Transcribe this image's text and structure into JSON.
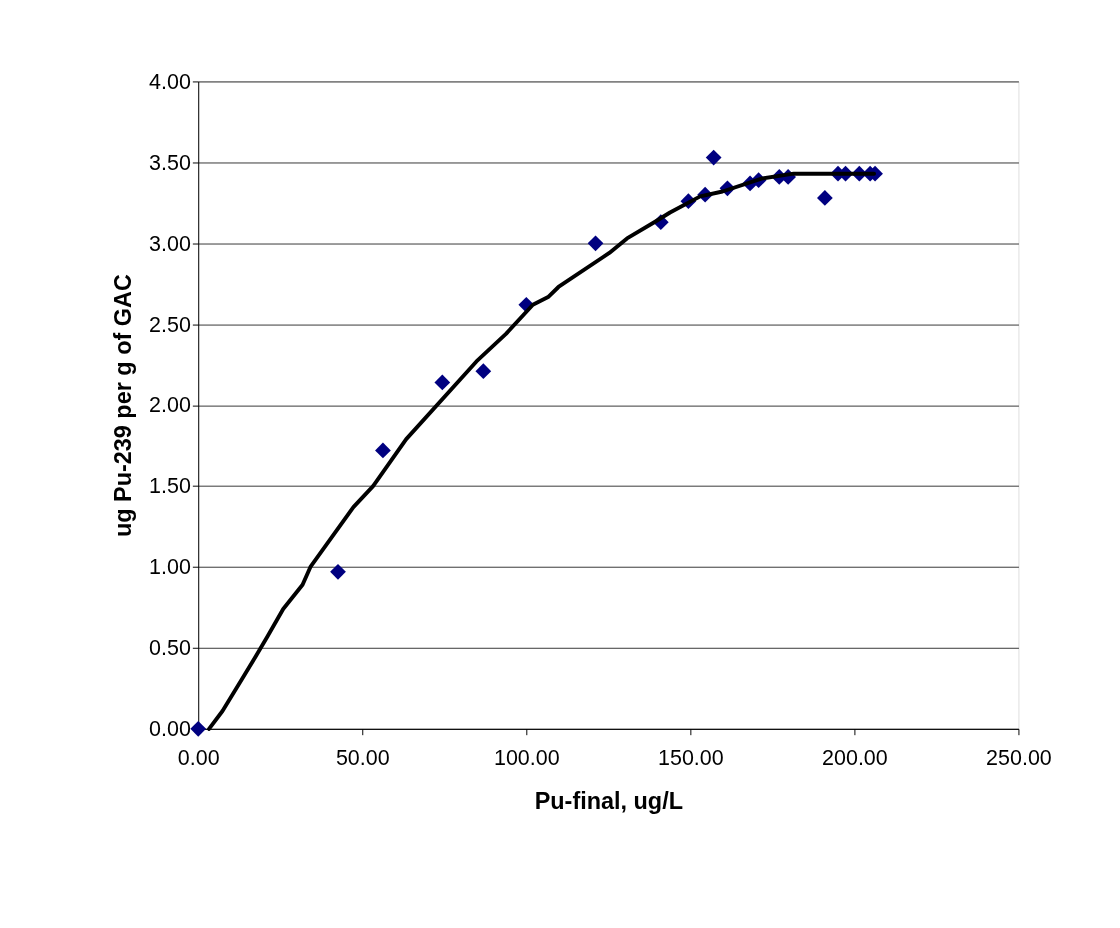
{
  "chart_data": {
    "type": "scatter",
    "xlabel": "Pu-final, ug/L",
    "ylabel": "ug Pu-239 per g of  GAC",
    "xlim": [
      0,
      250
    ],
    "xticks": [
      {
        "value": 0,
        "label": "0.00"
      },
      {
        "value": 50,
        "label": "50.00"
      },
      {
        "value": 100,
        "label": "100.00"
      },
      {
        "value": 150,
        "label": "150.00"
      },
      {
        "value": 200,
        "label": "200.00"
      },
      {
        "value": 250,
        "label": "250.00"
      }
    ],
    "ylim": [
      0,
      4
    ],
    "yticks": [
      {
        "value": 0,
        "label": "0.00"
      },
      {
        "value": 0.5,
        "label": "0.50"
      },
      {
        "value": 1,
        "label": "1.00"
      },
      {
        "value": 1.5,
        "label": "1.50"
      },
      {
        "value": 2,
        "label": "2.00"
      },
      {
        "value": 2.5,
        "label": "2.50"
      },
      {
        "value": 3,
        "label": "3.00"
      },
      {
        "value": 3.5,
        "label": "3.50"
      },
      {
        "value": 4,
        "label": "4.00"
      }
    ],
    "grid": "y",
    "series": [
      {
        "marker": "diamond",
        "color": "#000080",
        "x": [
          0,
          42.6,
          56.3,
          74.4,
          86.9,
          100,
          121.1,
          141,
          149.4,
          154.5,
          157.1,
          161.3,
          168.2,
          170.8,
          177.1,
          179.8,
          191,
          195,
          197.3,
          201.5,
          204.8,
          206.3
        ],
        "values": [
          0,
          0.97,
          1.72,
          2.14,
          2.21,
          2.62,
          3.0,
          3.13,
          3.26,
          3.3,
          3.53,
          3.34,
          3.37,
          3.39,
          3.41,
          3.41,
          3.28,
          3.43,
          3.43,
          3.43,
          3.43,
          3.43
        ]
      },
      {
        "type": "line",
        "marker": "none",
        "line_style": "solid",
        "color": "#000000",
        "x": [
          3.3,
          7.4,
          13.4,
          17.6,
          21.1,
          25.9,
          31.8,
          34.2,
          47.3,
          53.3,
          63.4,
          84.8,
          93.8,
          102,
          106.8,
          109.8,
          125.3,
          130.7,
          139,
          143.8,
          153,
          159.8,
          171.7,
          181.5,
          206
        ],
        "values": [
          0,
          0.11,
          0.31,
          0.45,
          0.57,
          0.74,
          0.89,
          1.0,
          1.37,
          1.5,
          1.79,
          2.27,
          2.44,
          2.62,
          2.67,
          2.73,
          2.94,
          3.03,
          3.13,
          3.19,
          3.29,
          3.32,
          3.4,
          3.43,
          3.43
        ]
      }
    ]
  }
}
